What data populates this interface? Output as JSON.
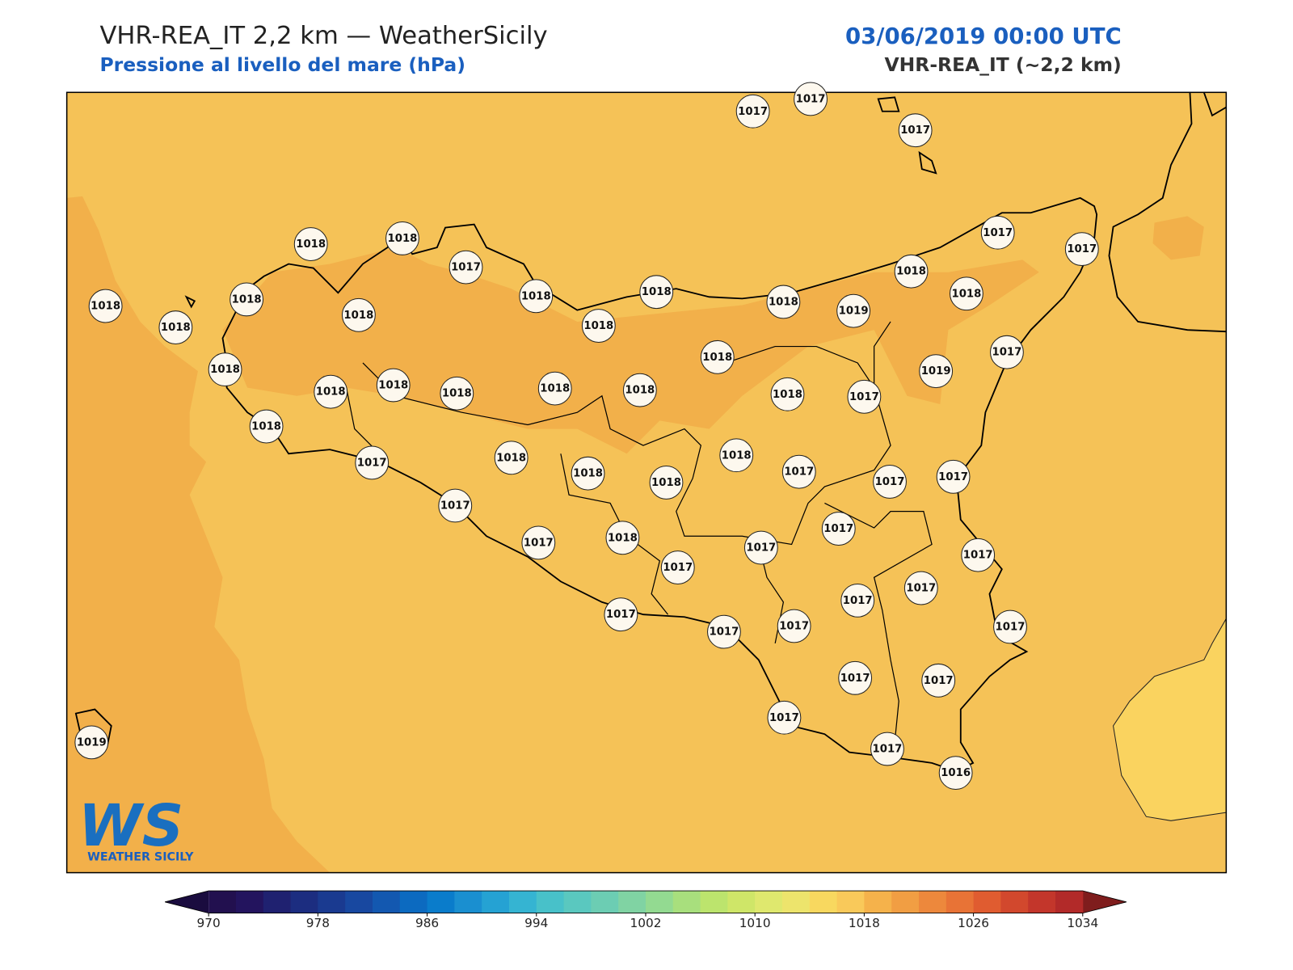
{
  "header": {
    "title": "VHR-REA_IT 2,2 km — WeatherSicily",
    "subtitle": "Pressione al livello del mare (hPa)",
    "date": "03/06/2019 00:00 UTC",
    "model": "VHR-REA_IT (~2,2 km)"
  },
  "stations": [
    1017,
    1017,
    1017,
    1018,
    1018,
    1017,
    1017,
    1017,
    1018,
    1018,
    1018,
    1018,
    1018,
    1018,
    1018,
    1018,
    1019,
    1018,
    1018,
    1018,
    1018,
    1018,
    1018,
    1018,
    1018,
    1018,
    1018,
    1017,
    1019,
    1017,
    1018,
    1017,
    1018,
    1018,
    1018,
    1018,
    1017,
    1017,
    1017,
    1017,
    1017,
    1018,
    1017,
    1017,
    1017,
    1017,
    1017,
    1017,
    1017,
    1017,
    1017,
    1017,
    1017,
    1017,
    1017,
    1017,
    1016,
    1019
  ],
  "colorbar": {
    "ticks": [
      970,
      978,
      986,
      994,
      1002,
      1010,
      1018,
      1026,
      1034
    ],
    "lim": [
      970,
      1034
    ],
    "colors": [
      "#22104f",
      "#23145e",
      "#1f2170",
      "#1c2d80",
      "#1a3a90",
      "#1848a0",
      "#1358b0",
      "#0c6ac0",
      "#0a7ccb",
      "#1a8fd0",
      "#25a2d3",
      "#35b4d2",
      "#48c1c9",
      "#5ac8bf",
      "#6ccdb3",
      "#80d3a3",
      "#93da91",
      "#a8df7d",
      "#bce46d",
      "#cfe668",
      "#dfe86e",
      "#ede46c",
      "#f8d85f",
      "#f9c95a",
      "#f5b24b",
      "#f19e43",
      "#ed883c",
      "#e87336",
      "#e05c30",
      "#d2482d",
      "#c3362b",
      "#b22a29"
    ],
    "under": "#1a0c3f",
    "over": "#7f1d1d"
  },
  "logo": {
    "mark": "WS",
    "text": "WEATHER SICILY"
  }
}
